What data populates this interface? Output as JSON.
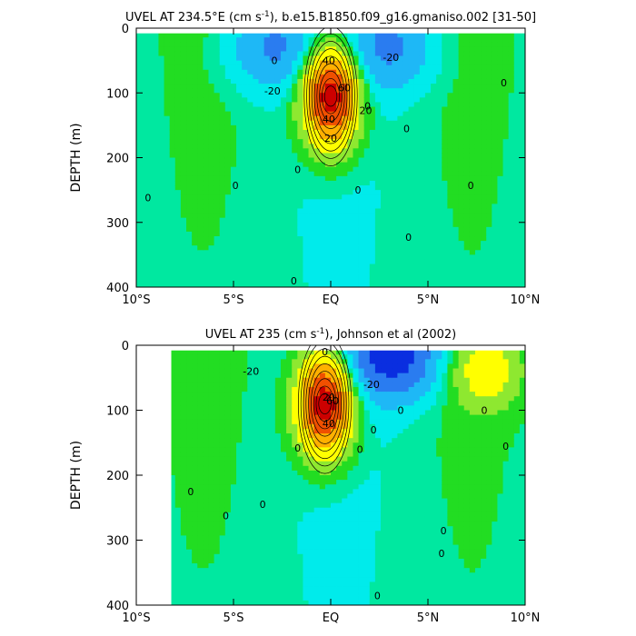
{
  "chart_data": [
    {
      "type": "heatmap",
      "title": "UVEL AT 234.5°E (cm s",
      "title_sup": "-1",
      "title_rest": "), b.e15.B1850.f09_g16.gmaniso.002 [31-50]",
      "ylabel": "DEPTH (m)",
      "xlabel": "",
      "x_ticks": [
        "10°S",
        "5°S",
        "EQ",
        "5°N",
        "10°N"
      ],
      "y_ticks": [
        "0",
        "100",
        "200",
        "300",
        "400"
      ],
      "xlim": [
        -10,
        10
      ],
      "ylim": [
        400,
        0
      ],
      "colorbar": "none",
      "contour_labels": [
        "0",
        "-20",
        "-20",
        "40",
        "60",
        "20",
        "20",
        "40",
        "0",
        "0",
        "0",
        "0",
        "0",
        "0",
        "0",
        "0",
        "0",
        "0"
      ],
      "features": [
        {
          "kind": "jet_core",
          "lat": 0.0,
          "depth": 105,
          "max_value": 100
        },
        {
          "kind": "westward_surface",
          "lat": -3.0,
          "depth": 30,
          "min_value": -30
        },
        {
          "kind": "westward_surface",
          "lat": 3.0,
          "depth": 30,
          "min_value": -30
        }
      ]
    },
    {
      "type": "heatmap",
      "title": "UVEL AT 235 (cm s",
      "title_sup": "-1",
      "title_rest": "), Johnson et al (2002)",
      "ylabel": "DEPTH (m)",
      "xlabel": "",
      "x_ticks": [
        "10°S",
        "5°S",
        "EQ",
        "5°N",
        "10°N"
      ],
      "y_ticks": [
        "0",
        "100",
        "200",
        "300",
        "400"
      ],
      "xlim": [
        -10,
        10
      ],
      "ylim": [
        400,
        0
      ],
      "colorbar": "none",
      "contour_labels": [
        "-20",
        "0",
        "-20",
        "20",
        "40",
        "60",
        "0",
        "0",
        "0",
        "0",
        "0",
        "0",
        "0",
        "0",
        "0",
        "0",
        "0",
        "0"
      ],
      "features": [
        {
          "kind": "jet_core",
          "lat": -0.3,
          "depth": 90,
          "max_value": 100
        },
        {
          "kind": "westward_surface",
          "lat": 3.2,
          "depth": 15,
          "min_value": -60
        },
        {
          "kind": "eastward_surface",
          "lat": 8.0,
          "depth": 40,
          "max_value": 30
        }
      ]
    }
  ],
  "colors": {
    "very_negative": "#0a2ee0",
    "negative_strong": "#2a7cf0",
    "negative": "#1eb8f6",
    "slightly_negative": "#00ebeb",
    "near_zero": "#00e8a0",
    "slightly_positive": "#22dd22",
    "positive": "#8ee830",
    "positive_mid": "#ffff00",
    "positive_high": "#ffb000",
    "positive_strong": "#f05000",
    "max": "#cc0000"
  }
}
